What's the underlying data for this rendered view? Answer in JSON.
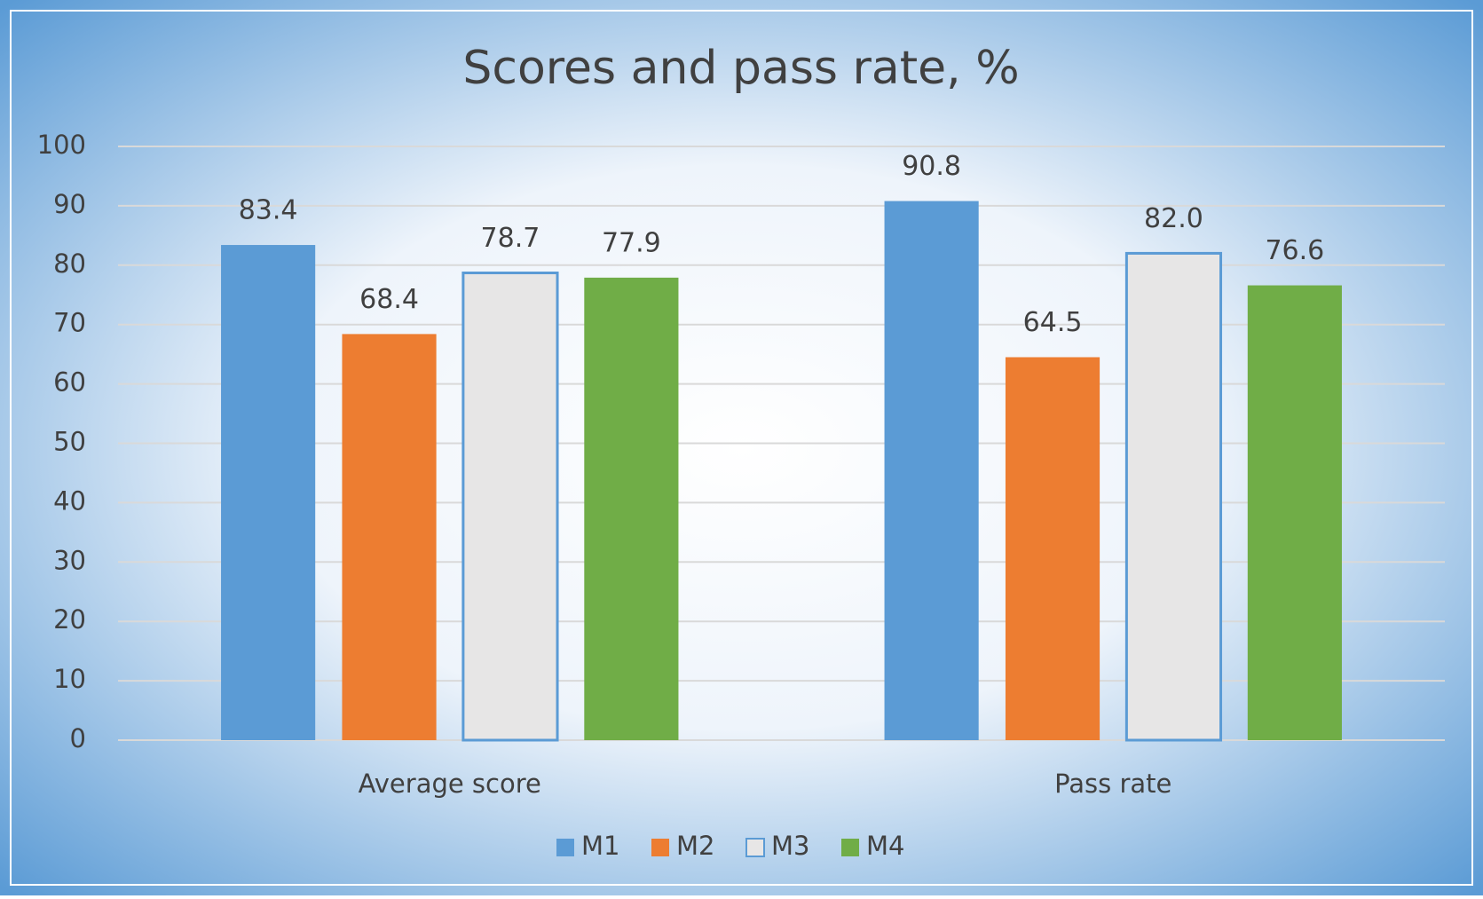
{
  "chart_data": {
    "type": "bar",
    "title": "Scores and pass rate, %",
    "categories": [
      "Average score",
      "Pass rate"
    ],
    "series": [
      {
        "name": "M1",
        "color": "#5b9bd5",
        "values": [
          83.4,
          90.8
        ],
        "value_labels": [
          "83.4",
          "90.8"
        ]
      },
      {
        "name": "M2",
        "color": "#ed7d31",
        "values": [
          68.4,
          64.5
        ],
        "value_labels": [
          "68.4",
          "64.5"
        ]
      },
      {
        "name": "M3",
        "color": "#e7e6e6",
        "edgecolor": "#5b9bd5",
        "values": [
          78.7,
          82.0
        ],
        "value_labels": [
          "78.7",
          "82.0"
        ]
      },
      {
        "name": "M4",
        "color": "#70ad47",
        "values": [
          77.9,
          76.6
        ],
        "value_labels": [
          "77.9",
          "76.6"
        ]
      }
    ],
    "ylim": [
      0,
      100
    ],
    "yticks": [
      0,
      10,
      20,
      30,
      40,
      50,
      60,
      70,
      80,
      90,
      100
    ],
    "grid": true,
    "legend": "bottom"
  }
}
